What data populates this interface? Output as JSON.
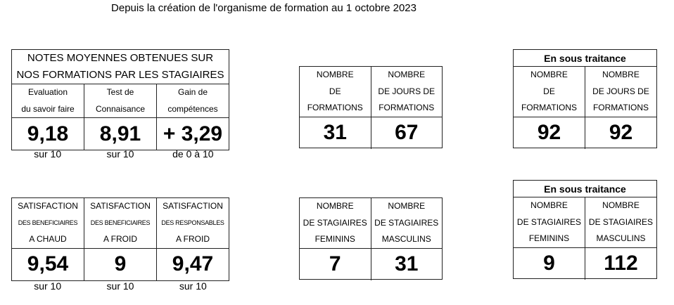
{
  "title": "Depuis la création de l'organisme de formation au 1 octobre 2023",
  "notes": {
    "heading_line1": "NOTES MOYENNES OBTENUES SUR",
    "heading_line2": "NOS FORMATIONS PAR LES STAGIAIRES",
    "columns": [
      {
        "line1": "Evaluation",
        "line2": "du savoir faire",
        "value": "9,18",
        "scale": "sur 10"
      },
      {
        "line1": "Test de",
        "line2": "Connaisance",
        "value": "8,91",
        "scale": "sur 10"
      },
      {
        "line1": "Gain de",
        "line2": "compétences",
        "value": "+ 3,29",
        "scale": "de 0 à 10"
      }
    ]
  },
  "satisfaction": {
    "columns": [
      {
        "line1": "SATISFACTION",
        "line2": "DES BENEFICIAIRES",
        "line3": "A CHAUD",
        "value": "9,54",
        "scale": "sur 10"
      },
      {
        "line1": "SATISFACTION",
        "line2": "DES BENEFICIAIRES",
        "line3": "A FROID",
        "value": "9",
        "scale": "sur 10"
      },
      {
        "line1": "SATISFACTION",
        "line2": "DES RESPONSABLES",
        "line3": "A FROID",
        "value": "9,47",
        "scale": "sur 10"
      }
    ]
  },
  "formations": {
    "columns": [
      {
        "line1": "NOMBRE",
        "line2": "DE",
        "line3": "FORMATIONS",
        "value": "31"
      },
      {
        "line1": "NOMBRE",
        "line2": "DE JOURS DE",
        "line3": "FORMATIONS",
        "value": "67"
      }
    ]
  },
  "stagiaires": {
    "columns": [
      {
        "line1": "NOMBRE",
        "line2": "DE STAGIAIRES",
        "line3": "FEMININS",
        "value": "7"
      },
      {
        "line1": "NOMBRE",
        "line2": "DE STAGIAIRES",
        "line3": "MASCULINS",
        "value": "31"
      }
    ]
  },
  "sous_traitance_formations": {
    "heading": "En sous traitance",
    "columns": [
      {
        "line1": "NOMBRE",
        "line2": "DE",
        "line3": "FORMATIONS",
        "value": "92"
      },
      {
        "line1": "NOMBRE",
        "line2": "DE JOURS DE",
        "line3": "FORMATIONS",
        "value": "92"
      }
    ]
  },
  "sous_traitance_stagiaires": {
    "heading": "En sous traitance",
    "columns": [
      {
        "line1": "NOMBRE",
        "line2": "DE STAGIAIRES",
        "line3": "FEMININS",
        "value": "9"
      },
      {
        "line1": "NOMBRE",
        "line2": "DE STAGIAIRES",
        "line3": "MASCULINS",
        "value": "112"
      }
    ]
  }
}
